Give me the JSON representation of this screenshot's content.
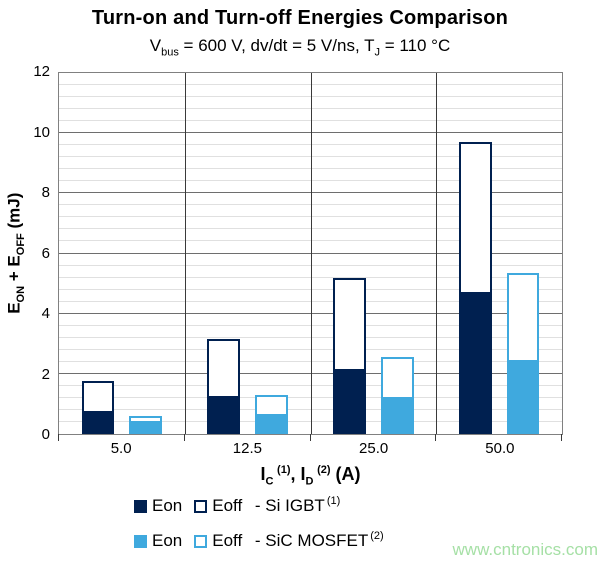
{
  "title": "Turn-on and Turn-off Energies Comparison",
  "subtitle": {
    "seg1": "V",
    "sub1": "bus",
    "seg2": " = 600 V, dv/dt = 5 V/ns, T",
    "sub2": "J",
    "seg3": " = 110 °C"
  },
  "y_axis": {
    "title_parts": {
      "seg1": "E",
      "sub1": "ON",
      "seg2": " + E",
      "sub2": "OFF",
      "seg3": " (mJ)"
    },
    "ticks": [
      0,
      2,
      4,
      6,
      8,
      10,
      12
    ]
  },
  "x_axis": {
    "title_parts": {
      "seg1": "I",
      "sub1": "C",
      "sup1": "(1)",
      "seg2": ", I",
      "sub2": "D",
      "sup2": "(2)",
      "seg3": " (A)"
    }
  },
  "chart_data": {
    "type": "bar",
    "stacked": true,
    "title": "Turn-on and Turn-off Energies Comparison",
    "subtitle": "Vbus = 600 V, dv/dt = 5 V/ns, TJ = 110 °C",
    "xlabel": "IC (1), ID (2) (A)",
    "ylabel": "EON + EOFF (mJ)",
    "categories": [
      "5.0",
      "12.5",
      "25.0",
      "50.0"
    ],
    "series": [
      {
        "name": "Eon - Si IGBT",
        "device": "si_igbt",
        "role": "eon",
        "values": [
          0.7,
          1.2,
          2.1,
          4.65
        ]
      },
      {
        "name": "Eoff - Si IGBT",
        "device": "si_igbt",
        "role": "eoff",
        "values": [
          1.05,
          1.95,
          3.1,
          5.05
        ]
      },
      {
        "name": "Eon - SiC MOSFET",
        "device": "sic_mosfet",
        "role": "eon",
        "values": [
          0.35,
          0.6,
          1.15,
          2.4
        ]
      },
      {
        "name": "Eoff - SiC MOSFET",
        "device": "sic_mosfet",
        "role": "eoff",
        "values": [
          0.25,
          0.7,
          1.4,
          2.95
        ]
      }
    ],
    "ylim": [
      0,
      12
    ],
    "ytick_step": 2,
    "minor_tick_step": 0.4,
    "grid": true,
    "legend_position": "bottom"
  },
  "legend": {
    "rows": [
      {
        "eon": "Eon",
        "eoff": "Eoff",
        "device": " - Si IGBT",
        "sup": "(1)"
      },
      {
        "eon": "Eon",
        "eoff": "Eoff",
        "device": " - SiC MOSFET",
        "sup": "(2)"
      }
    ]
  },
  "watermark": "www.cntronics.com",
  "colors": {
    "si_igbt": "#002050",
    "sic_mosfet": "#3fa9de",
    "major_grid": "#6e6e6e",
    "minor_grid": "#e0e0e0",
    "frame": "#808080",
    "separator": "#3a3a3a",
    "watermark": "#a6e0a6"
  }
}
